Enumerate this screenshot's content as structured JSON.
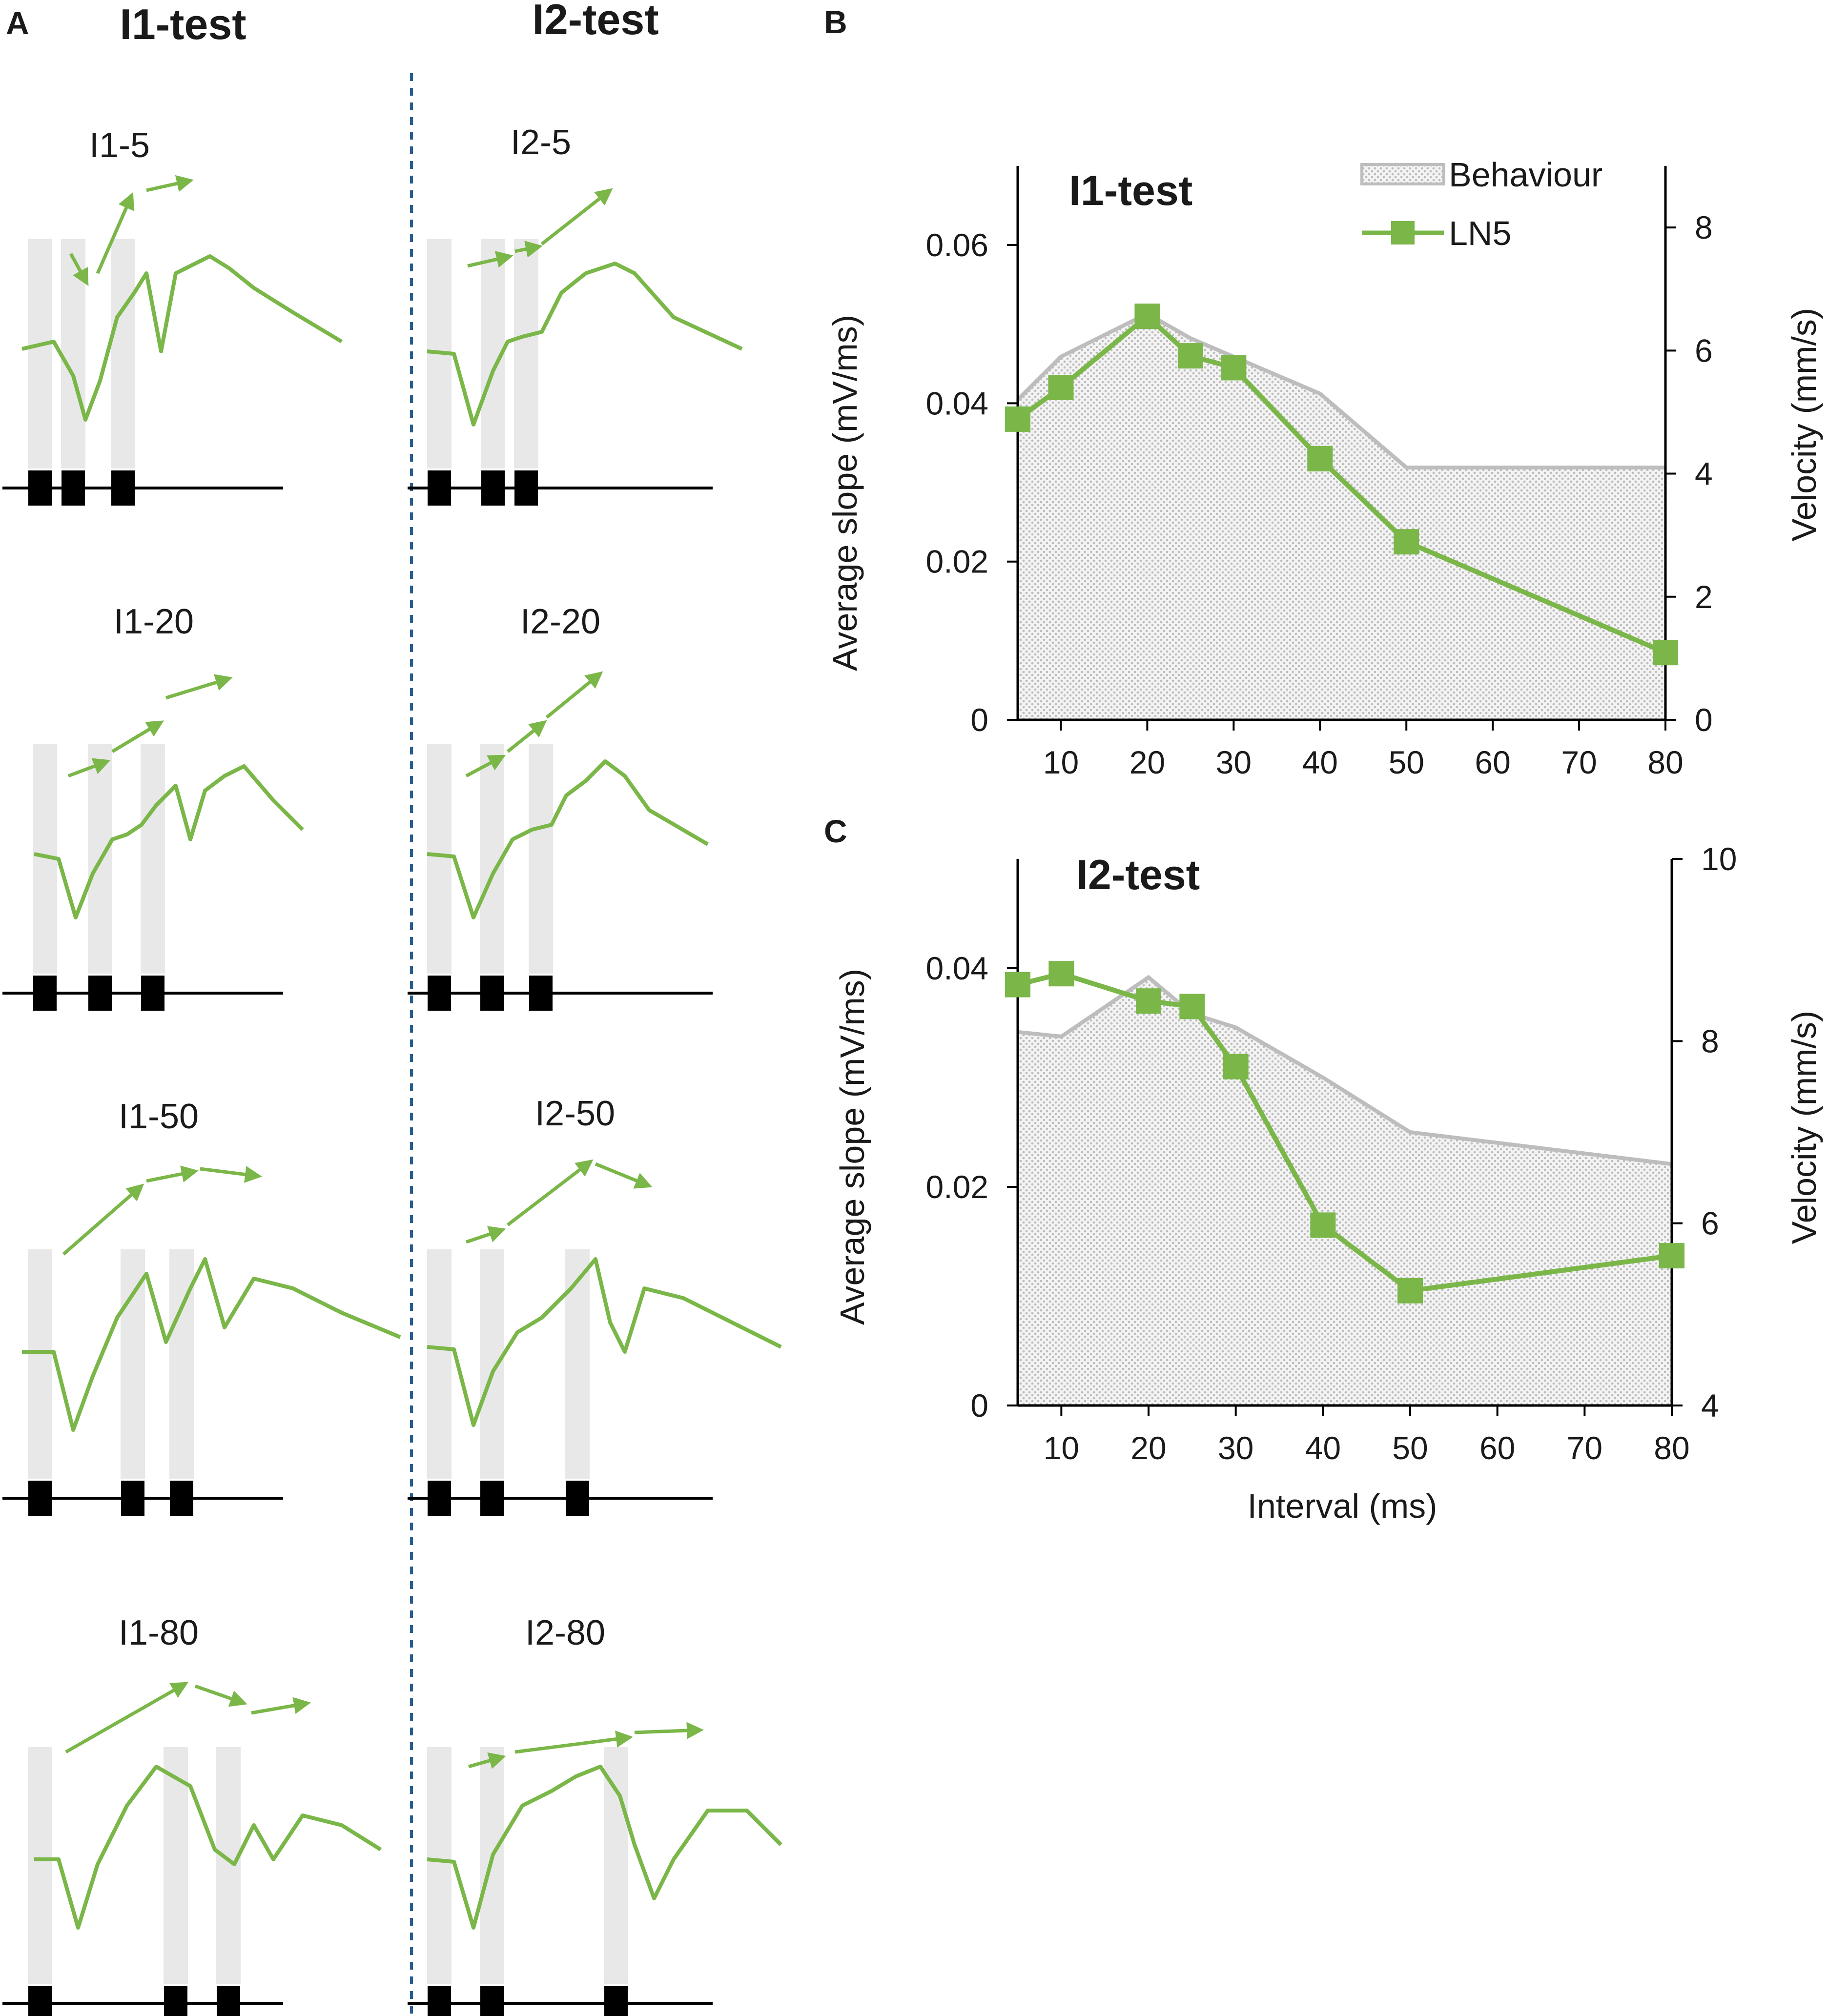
{
  "panel_labels": {
    "A": "A",
    "B": "B",
    "C": "C"
  },
  "panel_a": {
    "columns": [
      "I1-test",
      "I2-test"
    ],
    "traces": [
      [
        "I1-5",
        "I1-20",
        "I1-50",
        "I1-80"
      ],
      [
        "I2-5",
        "I2-20",
        "I2-50",
        "I2-80"
      ]
    ]
  },
  "colors": {
    "series": "#7ab648",
    "area_fill": "#d2d2d2",
    "area_line": "#bdbdbd",
    "stim_band": "#e8e8e8",
    "divider": "#2a5d8f",
    "text": "#1a1a1a"
  },
  "chart_data": [
    {
      "type": "line",
      "panel": "B",
      "title": "I1-test",
      "xlabel": "",
      "ylabel": "Average slope (mV/ms)",
      "y2label": "Velocity (mm/s)",
      "x_ticks": [
        10,
        20,
        30,
        40,
        50,
        60,
        70,
        80
      ],
      "xlim": [
        5,
        80
      ],
      "ylim": [
        0,
        0.07
      ],
      "y_ticks": [
        0,
        0.02,
        0.04,
        0.06
      ],
      "y_tick_labels": [
        "0",
        "0.02",
        "0.04",
        "0.06"
      ],
      "y2lim": [
        0,
        9
      ],
      "y2_ticks": [
        0,
        2,
        4,
        6,
        8
      ],
      "legend": [
        "Behaviour",
        "LN5"
      ],
      "legend_position": "top-right",
      "series": [
        {
          "name": "Behaviour",
          "axis": "right",
          "kind": "area",
          "x": [
            5,
            10,
            20,
            25,
            30,
            40,
            50,
            80
          ],
          "y": [
            5.2,
            5.9,
            6.6,
            6.2,
            5.9,
            5.3,
            4.1,
            4.1
          ]
        },
        {
          "name": "LN5",
          "axis": "left",
          "kind": "line-marker",
          "x": [
            5,
            10,
            20,
            25,
            30,
            40,
            50,
            80
          ],
          "y": [
            0.038,
            0.042,
            0.051,
            0.046,
            0.0445,
            0.033,
            0.0225,
            0.0085
          ]
        }
      ]
    },
    {
      "type": "line",
      "panel": "C",
      "title": "I2-test",
      "xlabel": "Interval (ms)",
      "ylabel": "Average slope (mV/ms)",
      "y2label": "Velocity (mm/s)",
      "x_ticks": [
        10,
        20,
        30,
        40,
        50,
        60,
        70,
        80
      ],
      "xlim": [
        5,
        80
      ],
      "ylim": [
        0,
        0.05
      ],
      "y_ticks": [
        0,
        0.02,
        0.04
      ],
      "y_tick_labels": [
        "0",
        "0.02",
        "0.04"
      ],
      "y2lim": [
        4,
        10
      ],
      "y2_ticks": [
        4,
        6,
        8,
        10
      ],
      "series": [
        {
          "name": "Behaviour",
          "axis": "right",
          "kind": "area",
          "x": [
            5,
            10,
            20,
            25,
            30,
            40,
            50,
            80
          ],
          "y": [
            8.1,
            8.05,
            8.7,
            8.3,
            8.15,
            7.6,
            7.0,
            6.65
          ]
        },
        {
          "name": "LN5",
          "axis": "left",
          "kind": "line-marker",
          "x": [
            5,
            10,
            20,
            25,
            30,
            40,
            50,
            80
          ],
          "y": [
            0.0385,
            0.0395,
            0.037,
            0.0365,
            0.031,
            0.0165,
            0.0105,
            0.0137
          ]
        }
      ]
    }
  ]
}
